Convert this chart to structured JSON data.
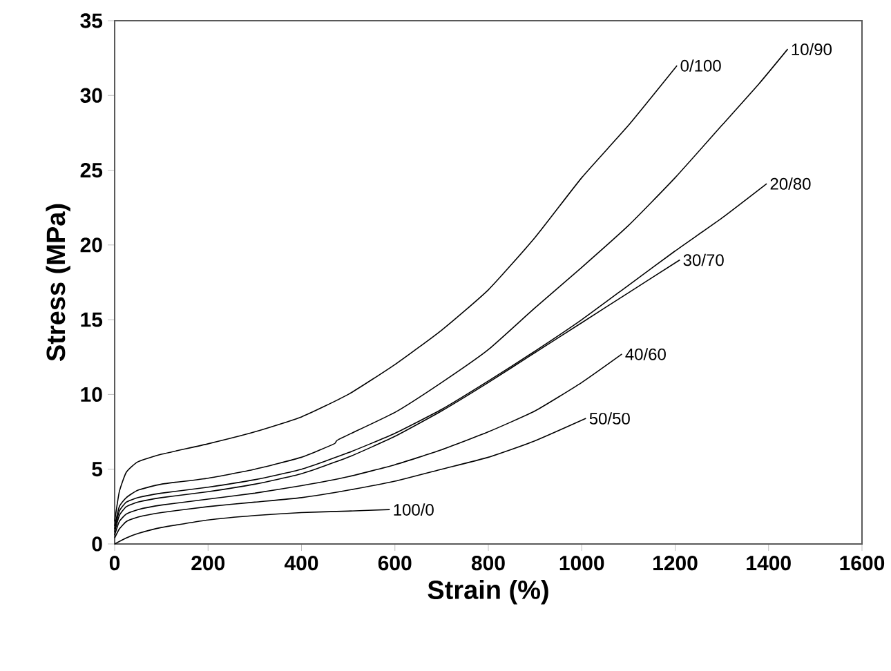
{
  "chart_data": {
    "type": "line",
    "xlabel": "Strain (%)",
    "ylabel": "Stress (MPa)",
    "xlim": [
      0,
      1600
    ],
    "ylim": [
      0,
      35
    ],
    "xticks": [
      0,
      200,
      400,
      600,
      800,
      1000,
      1200,
      1400,
      1600
    ],
    "yticks": [
      0,
      5,
      10,
      15,
      20,
      25,
      30,
      35
    ],
    "marker": "none",
    "line_style": "solid",
    "series": [
      {
        "name": "0/100",
        "color": "#000000",
        "x": [
          0,
          10,
          25,
          50,
          100,
          200,
          300,
          400,
          500,
          600,
          700,
          800,
          900,
          1000,
          1100,
          1204
        ],
        "values": [
          1.5,
          3.5,
          4.8,
          5.5,
          6.0,
          6.7,
          7.5,
          8.5,
          10.0,
          12.0,
          14.3,
          17.0,
          20.5,
          24.5,
          28.0,
          32.0
        ]
      },
      {
        "name": "10/90",
        "color": "#000000",
        "x": [
          0,
          10,
          25,
          50,
          100,
          200,
          300,
          400,
          470,
          480,
          600,
          700,
          800,
          900,
          1000,
          1100,
          1200,
          1300,
          1380,
          1441
        ],
        "values": [
          1.2,
          2.5,
          3.1,
          3.6,
          4.0,
          4.4,
          5.0,
          5.8,
          6.7,
          7.0,
          8.8,
          10.8,
          13.0,
          15.8,
          18.5,
          21.3,
          24.5,
          28.0,
          30.8,
          33.1
        ]
      },
      {
        "name": "20/80",
        "color": "#000000",
        "x": [
          0,
          10,
          25,
          50,
          100,
          200,
          300,
          400,
          500,
          600,
          700,
          800,
          900,
          1000,
          1100,
          1200,
          1300,
          1396
        ],
        "values": [
          1.0,
          2.2,
          2.8,
          3.1,
          3.4,
          3.8,
          4.3,
          5.0,
          6.1,
          7.4,
          9.0,
          10.9,
          12.9,
          15.0,
          17.3,
          19.6,
          21.8,
          24.1
        ]
      },
      {
        "name": "30/70",
        "color": "#000000",
        "x": [
          0,
          10,
          25,
          50,
          100,
          200,
          300,
          400,
          500,
          600,
          700,
          800,
          900,
          1000,
          1100,
          1210
        ],
        "values": [
          0.8,
          1.9,
          2.5,
          2.8,
          3.1,
          3.5,
          4.0,
          4.7,
          5.8,
          7.2,
          8.9,
          10.8,
          12.8,
          14.8,
          16.8,
          19.0
        ]
      },
      {
        "name": "40/60",
        "color": "#000000",
        "x": [
          0,
          10,
          25,
          50,
          100,
          200,
          300,
          400,
          500,
          600,
          700,
          800,
          900,
          1000,
          1086
        ],
        "values": [
          0.6,
          1.5,
          2.0,
          2.3,
          2.6,
          3.0,
          3.4,
          3.9,
          4.5,
          5.3,
          6.3,
          7.5,
          8.9,
          10.8,
          12.7
        ]
      },
      {
        "name": "50/50",
        "color": "#000000",
        "x": [
          0,
          10,
          25,
          50,
          100,
          200,
          300,
          400,
          500,
          600,
          700,
          800,
          900,
          1009
        ],
        "values": [
          0.4,
          1.0,
          1.5,
          1.8,
          2.1,
          2.5,
          2.8,
          3.1,
          3.6,
          4.2,
          5.0,
          5.8,
          6.9,
          8.4
        ]
      },
      {
        "name": "100/0",
        "color": "#000000",
        "x": [
          0,
          25,
          50,
          100,
          200,
          300,
          400,
          500,
          589
        ],
        "values": [
          0,
          0.4,
          0.7,
          1.1,
          1.6,
          1.9,
          2.1,
          2.2,
          2.3
        ]
      }
    ]
  }
}
